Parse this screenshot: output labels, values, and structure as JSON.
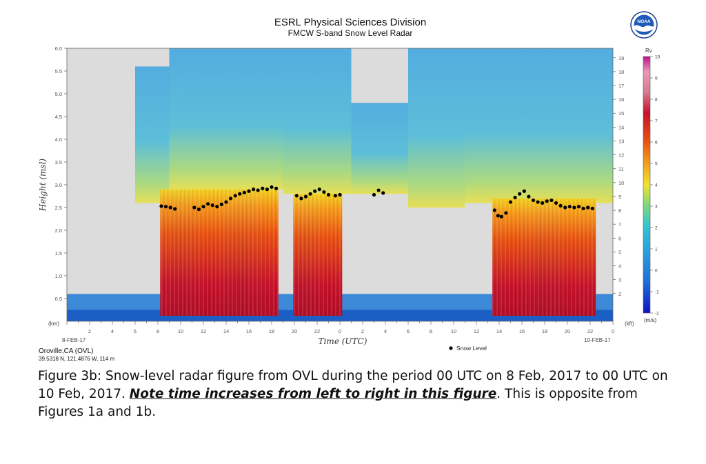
{
  "header": {
    "title": "ESRL Physical Sciences Division",
    "subtitle": "FMCW S-band Snow Level Radar",
    "logo_text": "NOAA"
  },
  "station": {
    "name": "Oroville,CA (OVL)",
    "coords": "39.5318 N, 121.4876 W, 114 m"
  },
  "colors": {
    "no_data_gray": "#dcdcdc",
    "snow_level_dot": "#000000",
    "low_rv": "#2b6cd9",
    "high_rv": "#c8102e"
  },
  "chart_data": {
    "type": "heatmap",
    "xlabel": "Time (UTC)",
    "ylabel": "Height (msl)",
    "x_tick_labels": [
      "2",
      "4",
      "6",
      "8",
      "10",
      "12",
      "14",
      "16",
      "18",
      "20",
      "22",
      "0",
      "2",
      "4",
      "6",
      "8",
      "10",
      "12",
      "14",
      "16",
      "18",
      "20",
      "22",
      "0"
    ],
    "x_date_start": "8-FEB-17",
    "x_date_end": "10-FEB-17",
    "y_unit_left": "(km)",
    "y_ticks_km": [
      "0.5",
      "1.0",
      "1.5",
      "2.0",
      "2.5",
      "3.0",
      "3.5",
      "4.0",
      "4.5",
      "5.0",
      "5.5",
      "6.0"
    ],
    "y_unit_right": "(kft)",
    "y_ticks_kft": [
      "2",
      "3",
      "4",
      "5",
      "6",
      "7",
      "8",
      "9",
      "10",
      "11",
      "12",
      "13",
      "14",
      "15",
      "16",
      "17",
      "18",
      "19"
    ],
    "colorbar": {
      "title": "Rv",
      "unit": "(m/s)",
      "ticks": [
        "10",
        "9",
        "8",
        "7",
        "6",
        "5",
        "4",
        "3",
        "2",
        "1",
        "0",
        "-1",
        "-2"
      ],
      "min": -2,
      "max": 10
    },
    "legend": {
      "label": "Snow Level",
      "position": "bottom-right"
    },
    "xlim_hours": [
      0,
      48
    ],
    "ylim_km": [
      0,
      6.0
    ],
    "snow_level": [
      {
        "t": 8.3,
        "km": 2.53
      },
      {
        "t": 8.7,
        "km": 2.52
      },
      {
        "t": 9.1,
        "km": 2.5
      },
      {
        "t": 9.5,
        "km": 2.47
      },
      {
        "t": 11.2,
        "km": 2.5
      },
      {
        "t": 11.6,
        "km": 2.46
      },
      {
        "t": 12.0,
        "km": 2.52
      },
      {
        "t": 12.4,
        "km": 2.58
      },
      {
        "t": 12.8,
        "km": 2.55
      },
      {
        "t": 13.2,
        "km": 2.52
      },
      {
        "t": 13.6,
        "km": 2.57
      },
      {
        "t": 14.0,
        "km": 2.62
      },
      {
        "t": 14.4,
        "km": 2.7
      },
      {
        "t": 14.8,
        "km": 2.76
      },
      {
        "t": 15.2,
        "km": 2.8
      },
      {
        "t": 15.6,
        "km": 2.83
      },
      {
        "t": 16.0,
        "km": 2.86
      },
      {
        "t": 16.4,
        "km": 2.9
      },
      {
        "t": 16.8,
        "km": 2.88
      },
      {
        "t": 17.2,
        "km": 2.92
      },
      {
        "t": 17.6,
        "km": 2.9
      },
      {
        "t": 18.0,
        "km": 2.95
      },
      {
        "t": 18.4,
        "km": 2.92
      },
      {
        "t": 20.2,
        "km": 2.76
      },
      {
        "t": 20.6,
        "km": 2.7
      },
      {
        "t": 21.0,
        "km": 2.74
      },
      {
        "t": 21.4,
        "km": 2.8
      },
      {
        "t": 21.8,
        "km": 2.86
      },
      {
        "t": 22.2,
        "km": 2.9
      },
      {
        "t": 22.6,
        "km": 2.84
      },
      {
        "t": 23.0,
        "km": 2.78
      },
      {
        "t": 23.6,
        "km": 2.76
      },
      {
        "t": 24.0,
        "km": 2.78
      },
      {
        "t": 27.0,
        "km": 2.78
      },
      {
        "t": 27.4,
        "km": 2.88
      },
      {
        "t": 27.8,
        "km": 2.82
      },
      {
        "t": 37.6,
        "km": 2.44
      },
      {
        "t": 37.9,
        "km": 2.32
      },
      {
        "t": 38.2,
        "km": 2.3
      },
      {
        "t": 38.6,
        "km": 2.38
      },
      {
        "t": 39.0,
        "km": 2.62
      },
      {
        "t": 39.4,
        "km": 2.72
      },
      {
        "t": 39.8,
        "km": 2.8
      },
      {
        "t": 40.2,
        "km": 2.86
      },
      {
        "t": 40.6,
        "km": 2.74
      },
      {
        "t": 41.0,
        "km": 2.66
      },
      {
        "t": 41.4,
        "km": 2.62
      },
      {
        "t": 41.8,
        "km": 2.6
      },
      {
        "t": 42.2,
        "km": 2.64
      },
      {
        "t": 42.6,
        "km": 2.66
      },
      {
        "t": 43.0,
        "km": 2.6
      },
      {
        "t": 43.4,
        "km": 2.54
      },
      {
        "t": 43.8,
        "km": 2.5
      },
      {
        "t": 44.2,
        "km": 2.52
      },
      {
        "t": 44.6,
        "km": 2.5
      },
      {
        "t": 45.0,
        "km": 2.52
      },
      {
        "t": 45.4,
        "km": 2.48
      },
      {
        "t": 45.8,
        "km": 2.5
      },
      {
        "t": 46.2,
        "km": 2.48
      }
    ],
    "precip_events": [
      {
        "start": 8.2,
        "end": 18.6,
        "top_km": 2.9
      },
      {
        "start": 19.9,
        "end": 24.2,
        "top_km": 2.8
      },
      {
        "start": 37.4,
        "end": 46.5,
        "top_km": 2.7
      }
    ]
  },
  "caption": {
    "text1": "Figure 3b: Snow-level radar figure from OVL during the period 00 UTC on 8 Feb, 2017 to 00 UTC on 10 Feb, 2017. ",
    "note": "Note time increases from left to right in this figure",
    "text2": ". This is opposite from Figures 1a and 1b."
  }
}
